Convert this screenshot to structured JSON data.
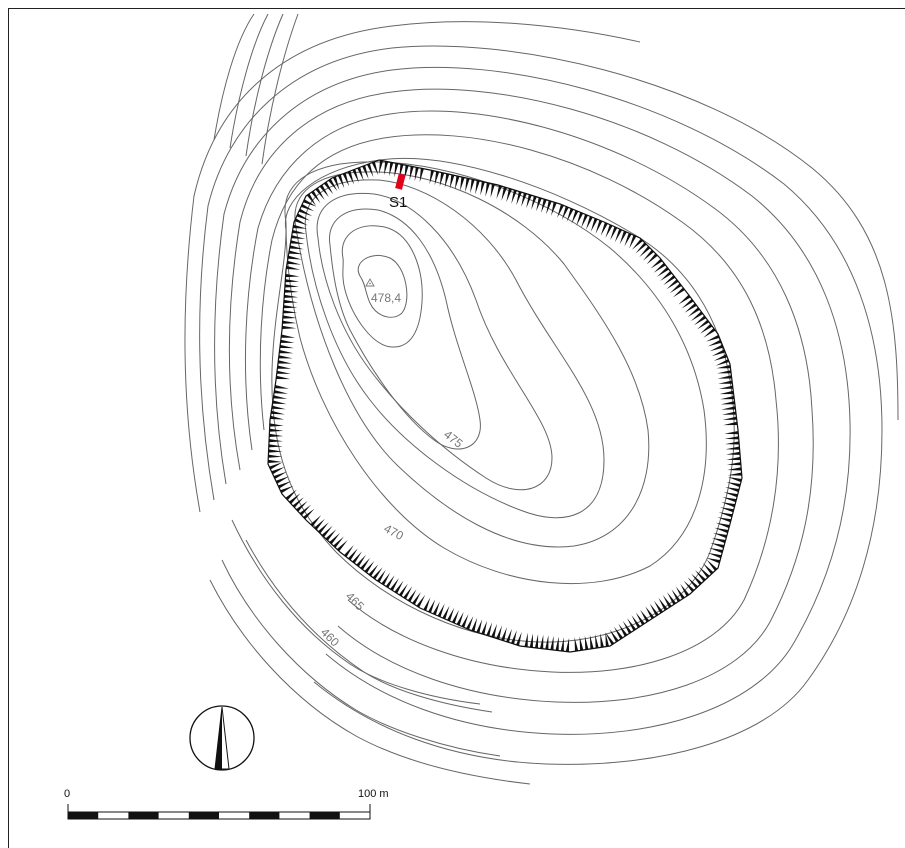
{
  "map": {
    "contour_labels": [
      "475",
      "470",
      "465",
      "460"
    ],
    "summit_elevation": "478,4",
    "section_marker": {
      "label": "S1",
      "color": "#e3001b"
    },
    "north_arrow": "north-arrow-icon",
    "scale_bar": {
      "start_label": "0",
      "end_label": "100 m"
    }
  }
}
